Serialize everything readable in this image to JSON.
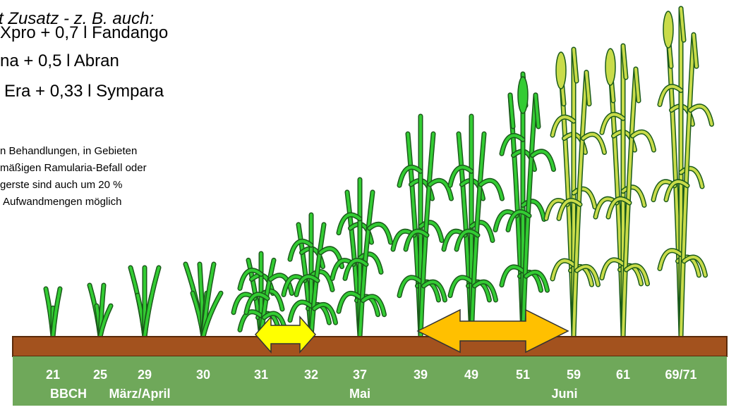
{
  "header": {
    "title": "t Zusatz - z. B. auch:",
    "lines": [
      "Xpro + 0,7 l Fandango",
      "na + 0,5 l Abran",
      "Era + 0,33 l Sympara"
    ]
  },
  "note": [
    "n Behandlungen, in Gebieten",
    "mäßigen Ramularia-Befall oder",
    "gerste sind auch um 20 %",
    "Aufwandmengen möglich"
  ],
  "stages": [
    "21",
    "25",
    "29",
    "30",
    "31",
    "32",
    "37",
    "39",
    "49",
    "51",
    "59",
    "61",
    "69/71"
  ],
  "periods": [
    "BBCH",
    "März/April",
    "Mai",
    "Juni"
  ]
}
